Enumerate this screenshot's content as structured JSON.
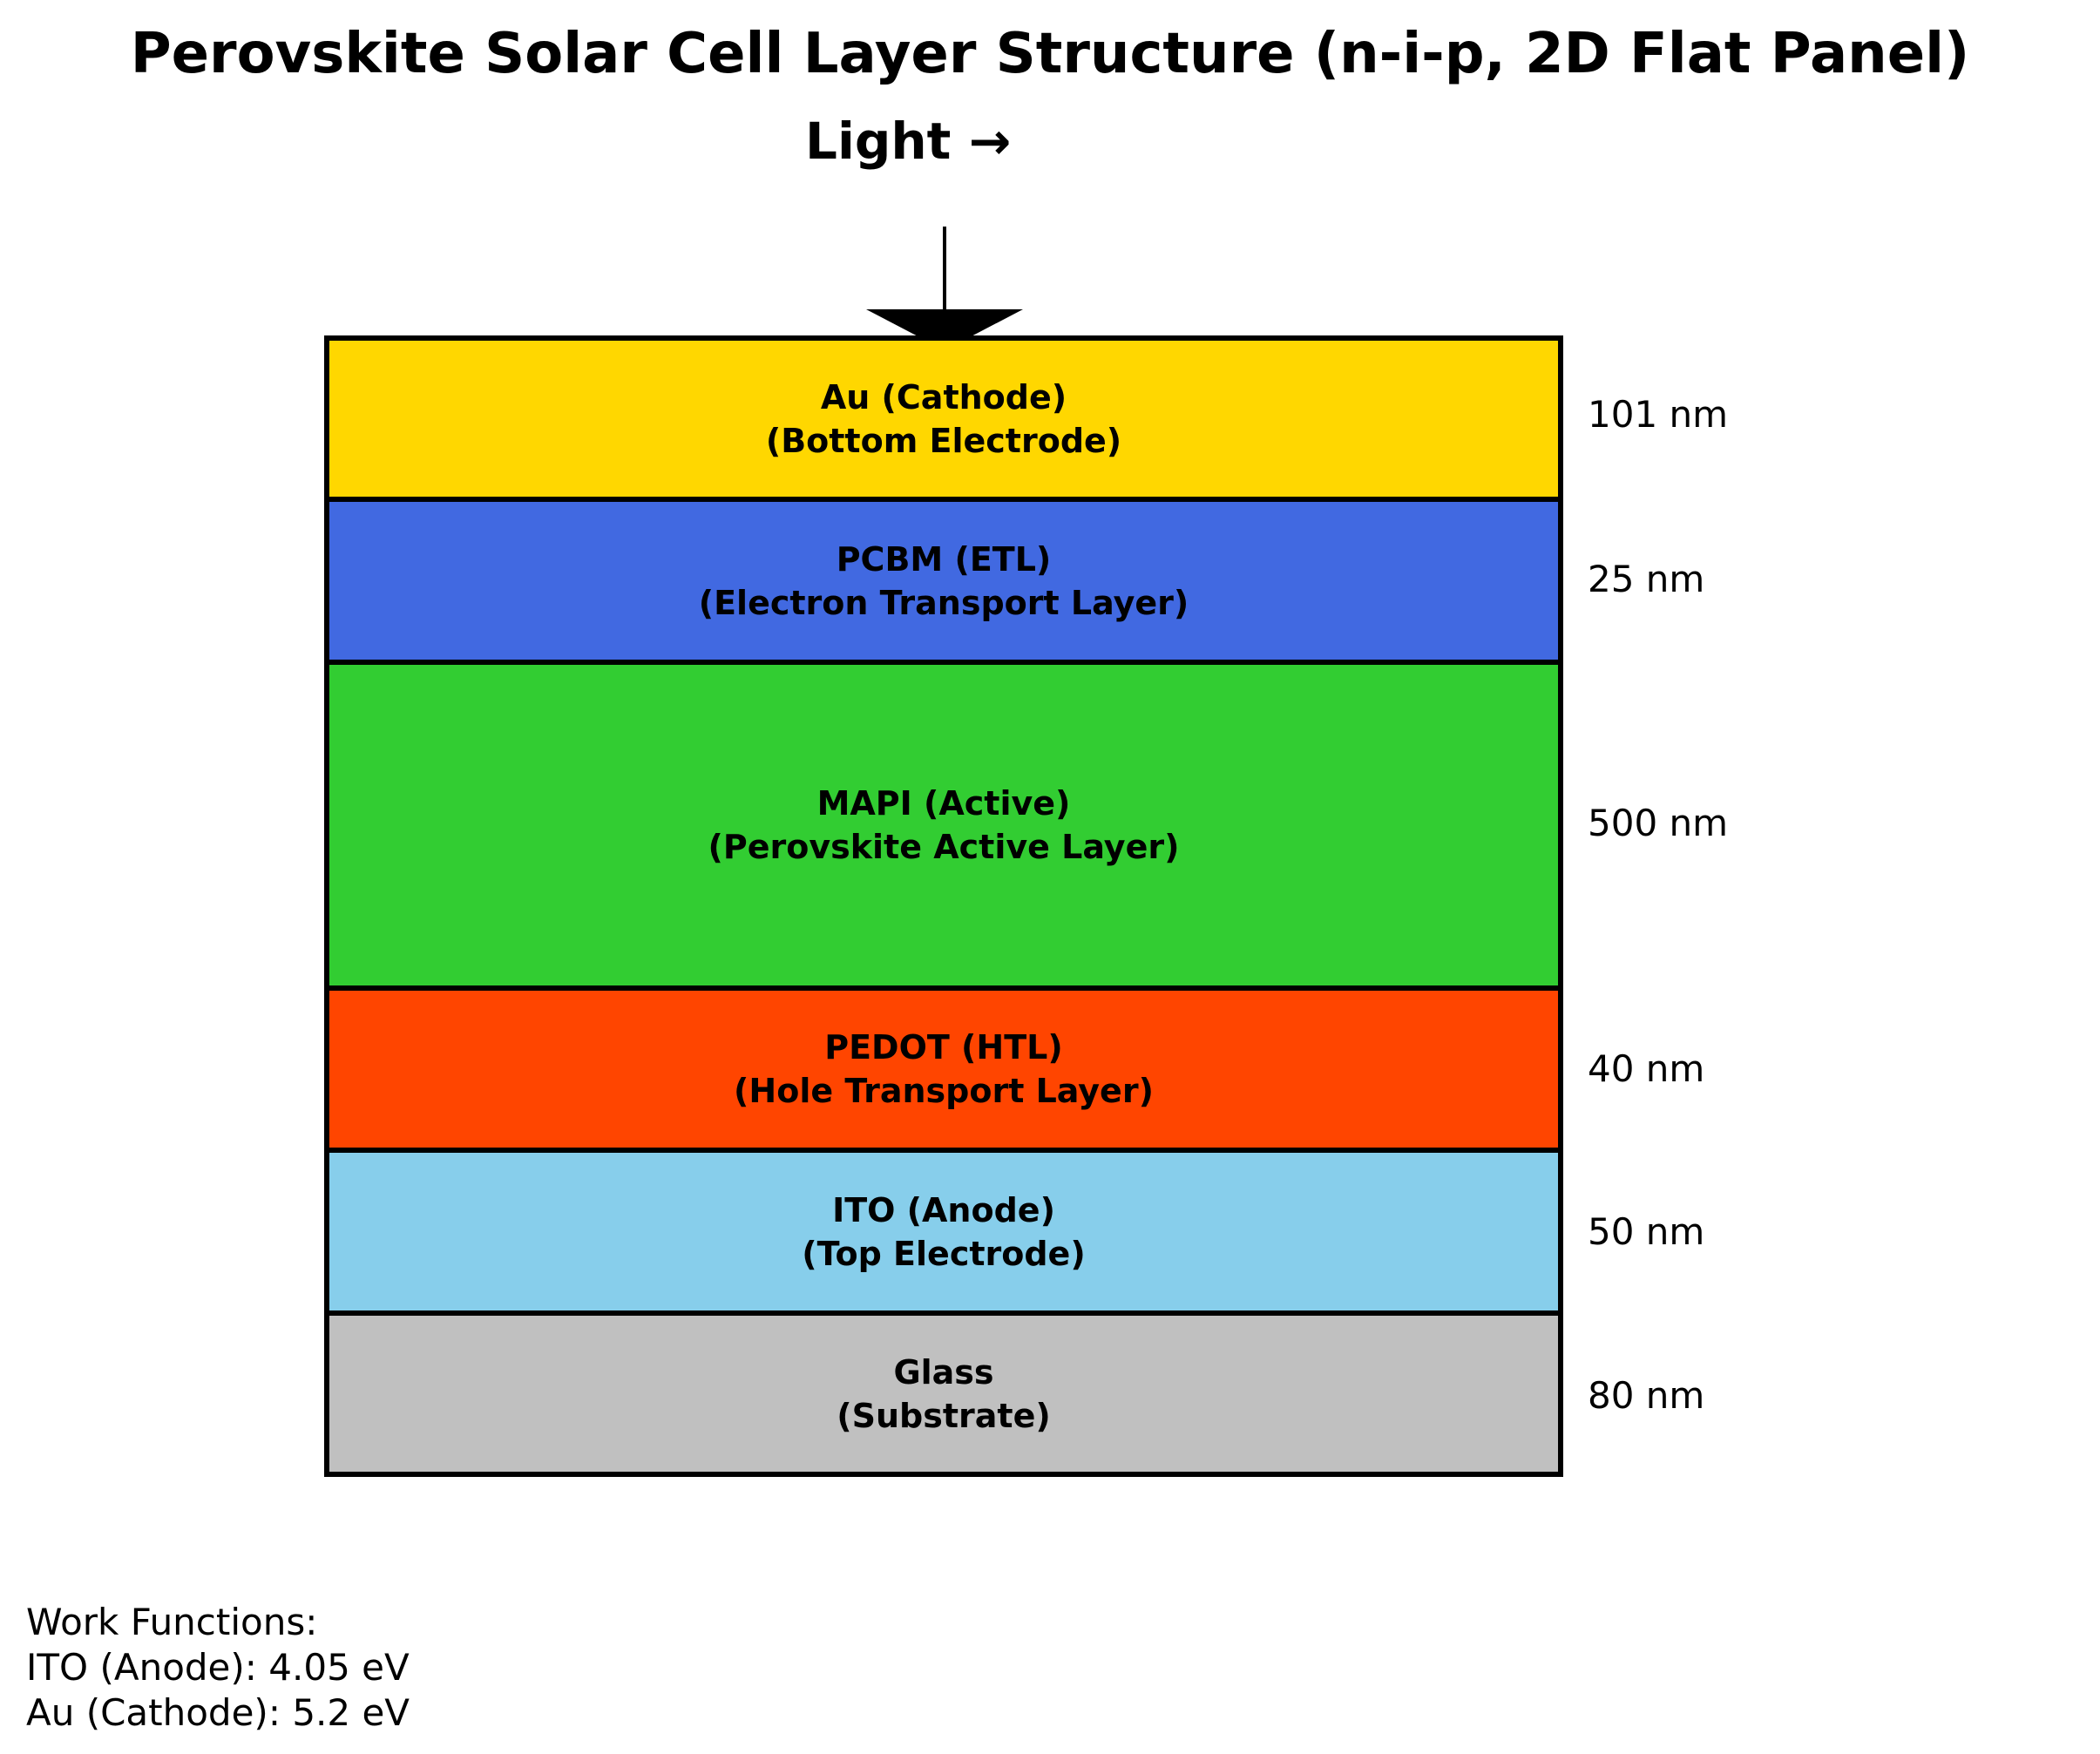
{
  "title": "Perovskite Solar Cell Layer Structure (n-i-p, 2D Flat Panel)",
  "light_label": "Light →",
  "layers": [
    {
      "name": "Au (Cathode)",
      "description": "(Bottom Electrode)",
      "thickness": "101 nm",
      "color": "#FFD700"
    },
    {
      "name": "PCBM (ETL)",
      "description": "(Electron Transport Layer)",
      "thickness": "25 nm",
      "color": "#4169E1"
    },
    {
      "name": "MAPI (Active)",
      "description": "(Perovskite Active Layer)",
      "thickness": "500 nm",
      "color": "#32CD32"
    },
    {
      "name": "PEDOT (HTL)",
      "description": "(Hole Transport Layer)",
      "thickness": "40 nm",
      "color": "#FF4500"
    },
    {
      "name": "ITO (Anode)",
      "description": "(Top Electrode)",
      "thickness": "50 nm",
      "color": "#87CEEB"
    },
    {
      "name": "Glass",
      "description": "(Substrate)",
      "thickness": "80 nm",
      "color": "#C0C0C0"
    }
  ],
  "work_functions": {
    "heading": "Work Functions:",
    "lines": [
      "ITO (Anode): 4.05 eV",
      "Au (Cathode): 5.2 eV"
    ]
  }
}
